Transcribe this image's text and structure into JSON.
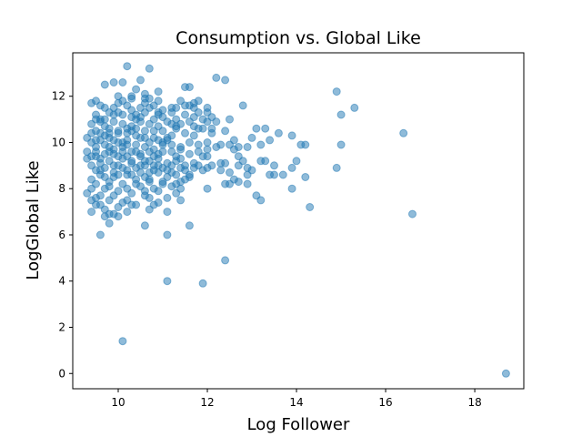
{
  "chart_data": {
    "type": "scatter",
    "title": "Consumption vs. Global Like",
    "xlabel": "Log Follower",
    "ylabel": "LogGlobal Like",
    "xlim": [
      8.98,
      19.1
    ],
    "ylim": [
      -0.66,
      13.88
    ],
    "xticks": [
      10,
      12,
      14,
      16,
      18
    ],
    "yticks": [
      0,
      2,
      4,
      6,
      8,
      10,
      12
    ],
    "grid": false,
    "color": "#1f77b4",
    "points": [
      [
        9.4,
        11.7
      ],
      [
        9.5,
        11.8
      ],
      [
        9.6,
        11.6
      ],
      [
        9.7,
        11.5
      ],
      [
        9.5,
        11.2
      ],
      [
        9.6,
        11.0
      ],
      [
        9.8,
        11.3
      ],
      [
        9.9,
        11.5
      ],
      [
        10.0,
        11.7
      ],
      [
        10.1,
        11.8
      ],
      [
        10.2,
        11.6
      ],
      [
        10.3,
        11.4
      ],
      [
        10.4,
        11.2
      ],
      [
        10.5,
        11.5
      ],
      [
        10.6,
        11.7
      ],
      [
        10.7,
        11.9
      ],
      [
        10.8,
        11.6
      ],
      [
        10.9,
        11.3
      ],
      [
        11.0,
        11.1
      ],
      [
        11.2,
        11.5
      ],
      [
        11.4,
        11.8
      ],
      [
        11.5,
        12.4
      ],
      [
        11.6,
        12.4
      ],
      [
        11.7,
        11.7
      ],
      [
        11.8,
        11.8
      ],
      [
        10.2,
        13.3
      ],
      [
        10.7,
        13.2
      ],
      [
        9.7,
        12.5
      ],
      [
        9.9,
        12.6
      ],
      [
        10.1,
        12.6
      ],
      [
        10.4,
        12.3
      ],
      [
        10.5,
        12.7
      ],
      [
        10.6,
        12.1
      ],
      [
        10.9,
        12.2
      ],
      [
        10.3,
        12.0
      ],
      [
        9.4,
        10.8
      ],
      [
        9.5,
        10.5
      ],
      [
        9.6,
        10.9
      ],
      [
        9.7,
        10.7
      ],
      [
        9.8,
        10.6
      ],
      [
        9.9,
        10.9
      ],
      [
        10.0,
        10.4
      ],
      [
        10.1,
        10.8
      ],
      [
        10.2,
        10.6
      ],
      [
        10.3,
        10.7
      ],
      [
        10.4,
        10.3
      ],
      [
        10.5,
        10.9
      ],
      [
        10.6,
        10.5
      ],
      [
        10.7,
        10.8
      ],
      [
        10.8,
        10.2
      ],
      [
        10.9,
        10.7
      ],
      [
        11.0,
        10.5
      ],
      [
        11.1,
        10.9
      ],
      [
        11.2,
        10.3
      ],
      [
        11.3,
        10.6
      ],
      [
        11.4,
        10.8
      ],
      [
        11.5,
        10.4
      ],
      [
        11.6,
        10.9
      ],
      [
        11.7,
        10.7
      ],
      [
        11.9,
        10.6
      ],
      [
        12.0,
        10.9
      ],
      [
        9.3,
        10.2
      ],
      [
        9.4,
        10.0
      ],
      [
        9.5,
        9.8
      ],
      [
        9.6,
        10.1
      ],
      [
        9.7,
        9.9
      ],
      [
        9.8,
        10.2
      ],
      [
        9.9,
        9.7
      ],
      [
        10.0,
        10.0
      ],
      [
        10.1,
        9.8
      ],
      [
        10.2,
        10.1
      ],
      [
        10.3,
        9.6
      ],
      [
        10.4,
        9.9
      ],
      [
        10.5,
        9.5
      ],
      [
        10.6,
        9.8
      ],
      [
        10.7,
        10.0
      ],
      [
        10.8,
        9.7
      ],
      [
        10.9,
        9.5
      ],
      [
        11.0,
        9.9
      ],
      [
        11.1,
        10.2
      ],
      [
        11.2,
        9.6
      ],
      [
        11.3,
        9.4
      ],
      [
        11.4,
        9.8
      ],
      [
        11.6,
        10.0
      ],
      [
        11.8,
        9.9
      ],
      [
        12.0,
        10.0
      ],
      [
        12.2,
        9.8
      ],
      [
        9.3,
        9.3
      ],
      [
        9.4,
        9.0
      ],
      [
        9.5,
        9.4
      ],
      [
        9.6,
        9.1
      ],
      [
        9.7,
        8.9
      ],
      [
        9.8,
        9.2
      ],
      [
        9.9,
        9.5
      ],
      [
        10.0,
        9.0
      ],
      [
        10.1,
        9.3
      ],
      [
        10.2,
        8.8
      ],
      [
        10.3,
        9.1
      ],
      [
        10.4,
        8.9
      ],
      [
        10.5,
        9.4
      ],
      [
        10.6,
        9.2
      ],
      [
        10.7,
        8.7
      ],
      [
        10.8,
        9.0
      ],
      [
        10.9,
        9.3
      ],
      [
        11.0,
        8.9
      ],
      [
        11.1,
        9.1
      ],
      [
        11.2,
        8.7
      ],
      [
        11.3,
        9.2
      ],
      [
        11.4,
        8.9
      ],
      [
        11.5,
        9.0
      ],
      [
        11.7,
        9.1
      ],
      [
        11.9,
        8.8
      ],
      [
        12.1,
        9.0
      ],
      [
        9.4,
        8.4
      ],
      [
        9.5,
        8.2
      ],
      [
        9.6,
        8.6
      ],
      [
        9.7,
        8.0
      ],
      [
        9.8,
        8.3
      ],
      [
        9.9,
        8.5
      ],
      [
        10.0,
        7.9
      ],
      [
        10.1,
        8.2
      ],
      [
        10.2,
        8.6
      ],
      [
        10.3,
        7.8
      ],
      [
        10.4,
        8.4
      ],
      [
        10.5,
        8.1
      ],
      [
        10.6,
        7.7
      ],
      [
        10.7,
        8.3
      ],
      [
        10.8,
        8.0
      ],
      [
        10.9,
        7.9
      ],
      [
        11.0,
        8.2
      ],
      [
        11.2,
        8.1
      ],
      [
        11.4,
        8.3
      ],
      [
        11.6,
        8.5
      ],
      [
        9.3,
        7.8
      ],
      [
        9.4,
        7.5
      ],
      [
        9.5,
        7.6
      ],
      [
        9.6,
        7.3
      ],
      [
        9.7,
        7.1
      ],
      [
        9.8,
        7.5
      ],
      [
        9.9,
        6.9
      ],
      [
        10.0,
        7.2
      ],
      [
        10.1,
        7.4
      ],
      [
        10.2,
        7.0
      ],
      [
        10.4,
        7.3
      ],
      [
        10.7,
        7.1
      ],
      [
        10.9,
        7.4
      ],
      [
        11.1,
        7.0
      ],
      [
        11.4,
        7.5
      ],
      [
        9.4,
        7.0
      ],
      [
        9.6,
        6.0
      ],
      [
        9.8,
        6.5
      ],
      [
        10.6,
        6.4
      ],
      [
        11.1,
        6.0
      ],
      [
        11.6,
        6.4
      ],
      [
        11.1,
        4.0
      ],
      [
        11.9,
        3.9
      ],
      [
        12.4,
        4.9
      ],
      [
        10.1,
        1.4
      ],
      [
        18.7,
        0.0
      ],
      [
        16.6,
        6.9
      ],
      [
        16.4,
        10.4
      ],
      [
        15.3,
        11.5
      ],
      [
        15.0,
        11.2
      ],
      [
        14.9,
        12.2
      ],
      [
        15.0,
        9.9
      ],
      [
        14.9,
        8.9
      ],
      [
        14.3,
        7.2
      ],
      [
        14.2,
        8.5
      ],
      [
        14.2,
        9.9
      ],
      [
        14.1,
        9.9
      ],
      [
        13.9,
        10.3
      ],
      [
        13.9,
        8.9
      ],
      [
        13.9,
        8.0
      ],
      [
        13.6,
        10.4
      ],
      [
        13.5,
        8.6
      ],
      [
        13.4,
        10.1
      ],
      [
        13.4,
        8.6
      ],
      [
        13.3,
        9.2
      ],
      [
        13.3,
        10.6
      ],
      [
        13.2,
        7.5
      ],
      [
        13.2,
        9.2
      ],
      [
        13.1,
        7.7
      ],
      [
        13.1,
        10.6
      ],
      [
        13.0,
        10.2
      ],
      [
        12.9,
        8.9
      ],
      [
        12.9,
        8.6
      ],
      [
        12.9,
        9.8
      ],
      [
        12.8,
        11.6
      ],
      [
        12.7,
        8.3
      ],
      [
        12.7,
        9.0
      ],
      [
        12.7,
        9.8
      ],
      [
        12.6,
        10.1
      ],
      [
        12.6,
        8.4
      ],
      [
        12.5,
        11.0
      ],
      [
        12.5,
        8.2
      ],
      [
        12.4,
        12.7
      ],
      [
        12.4,
        10.5
      ],
      [
        12.4,
        8.2
      ],
      [
        12.4,
        9.1
      ],
      [
        12.3,
        9.1
      ],
      [
        12.3,
        9.9
      ],
      [
        12.2,
        12.8
      ],
      [
        12.1,
        10.6
      ],
      [
        12.1,
        11.1
      ],
      [
        12.0,
        8.0
      ],
      [
        12.0,
        9.4
      ],
      [
        12.0,
        11.3
      ],
      [
        11.9,
        11.0
      ],
      [
        11.8,
        9.6
      ],
      [
        11.8,
        10.6
      ],
      [
        11.7,
        11.1
      ],
      [
        11.7,
        8.9
      ],
      [
        11.6,
        11.6
      ],
      [
        11.5,
        11.2
      ],
      [
        11.5,
        8.4
      ],
      [
        11.4,
        9.7
      ],
      [
        11.3,
        10.7
      ],
      [
        11.3,
        8.6
      ],
      [
        11.2,
        11.3
      ],
      [
        11.2,
        9.9
      ],
      [
        11.1,
        10.1
      ],
      [
        11.1,
        8.8
      ],
      [
        11.0,
        11.4
      ],
      [
        11.0,
        9.6
      ],
      [
        10.9,
        10.1
      ],
      [
        10.9,
        8.7
      ],
      [
        10.8,
        11.0
      ],
      [
        10.8,
        8.8
      ],
      [
        10.7,
        11.5
      ],
      [
        10.7,
        9.2
      ],
      [
        10.6,
        10.2
      ],
      [
        10.6,
        8.5
      ],
      [
        10.5,
        11.1
      ],
      [
        10.5,
        9.0
      ],
      [
        10.4,
        10.6
      ],
      [
        10.4,
        8.2
      ],
      [
        10.3,
        11.1
      ],
      [
        10.3,
        9.2
      ],
      [
        10.2,
        10.4
      ],
      [
        10.2,
        8.0
      ],
      [
        10.1,
        11.2
      ],
      [
        10.1,
        9.6
      ],
      [
        10.0,
        10.5
      ],
      [
        10.0,
        8.6
      ],
      [
        9.9,
        11.2
      ],
      [
        9.9,
        9.0
      ],
      [
        9.8,
        10.4
      ],
      [
        9.8,
        8.1
      ],
      [
        9.7,
        11.0
      ],
      [
        9.7,
        9.5
      ],
      [
        9.6,
        10.4
      ],
      [
        9.6,
        8.8
      ],
      [
        9.5,
        11.0
      ],
      [
        9.5,
        9.6
      ],
      [
        9.4,
        10.4
      ],
      [
        9.4,
        9.4
      ],
      [
        9.3,
        9.6
      ],
      [
        9.5,
        8.8
      ],
      [
        9.6,
        7.7
      ],
      [
        9.7,
        10.3
      ],
      [
        9.8,
        9.8
      ],
      [
        9.9,
        10.1
      ],
      [
        10.0,
        11.3
      ],
      [
        10.1,
        10.0
      ],
      [
        10.2,
        9.4
      ],
      [
        10.3,
        10.5
      ],
      [
        10.4,
        11.0
      ],
      [
        10.5,
        10.2
      ],
      [
        10.6,
        11.3
      ],
      [
        10.7,
        9.6
      ],
      [
        10.8,
        10.5
      ],
      [
        10.9,
        11.2
      ],
      [
        11.0,
        10.0
      ],
      [
        11.1,
        8.5
      ],
      [
        11.2,
        10.8
      ],
      [
        11.3,
        11.0
      ],
      [
        11.4,
        9.3
      ],
      [
        11.5,
        11.6
      ],
      [
        11.6,
        9.5
      ],
      [
        11.7,
        10.3
      ],
      [
        11.8,
        11.3
      ],
      [
        11.9,
        9.4
      ],
      [
        12.0,
        8.9
      ],
      [
        12.1,
        10.4
      ],
      [
        12.2,
        10.9
      ],
      [
        12.3,
        8.8
      ],
      [
        12.5,
        9.9
      ],
      [
        12.6,
        9.7
      ],
      [
        12.7,
        9.4
      ],
      [
        12.8,
        9.2
      ],
      [
        13.0,
        8.8
      ],
      [
        13.2,
        9.9
      ],
      [
        13.5,
        9.0
      ],
      [
        13.7,
        8.6
      ],
      [
        14.0,
        9.2
      ],
      [
        9.5,
        10.1
      ],
      [
        9.6,
        9.3
      ],
      [
        9.7,
        8.5
      ],
      [
        9.8,
        9.6
      ],
      [
        9.9,
        8.7
      ],
      [
        10.0,
        9.4
      ],
      [
        10.1,
        8.9
      ],
      [
        10.2,
        9.9
      ],
      [
        10.3,
        8.6
      ],
      [
        10.4,
        9.6
      ],
      [
        10.5,
        8.7
      ],
      [
        10.6,
        9.0
      ],
      [
        10.7,
        8.4
      ],
      [
        10.8,
        9.4
      ],
      [
        10.9,
        9.0
      ],
      [
        11.0,
        8.3
      ],
      [
        11.2,
        9.0
      ],
      [
        11.3,
        8.2
      ],
      [
        11.5,
        8.8
      ],
      [
        11.6,
        8.6
      ],
      [
        11.8,
        9.0
      ],
      [
        12.0,
        9.7
      ],
      [
        12.5,
        8.7
      ],
      [
        12.9,
        8.2
      ],
      [
        10.0,
        12.0
      ],
      [
        10.3,
        11.9
      ],
      [
        10.6,
        11.9
      ],
      [
        10.9,
        11.8
      ],
      [
        11.3,
        11.5
      ],
      [
        11.7,
        11.5
      ],
      [
        12.0,
        11.5
      ],
      [
        9.4,
        8.0
      ],
      [
        9.5,
        7.3
      ],
      [
        10.3,
        7.3
      ],
      [
        10.6,
        7.9
      ],
      [
        11.3,
        7.8
      ],
      [
        9.9,
        7.7
      ],
      [
        10.0,
        6.8
      ],
      [
        9.7,
        6.8
      ],
      [
        9.8,
        6.9
      ],
      [
        10.2,
        7.5
      ],
      [
        10.7,
        7.6
      ],
      [
        11.1,
        7.6
      ],
      [
        11.4,
        8.0
      ],
      [
        10.8,
        7.3
      ]
    ]
  }
}
